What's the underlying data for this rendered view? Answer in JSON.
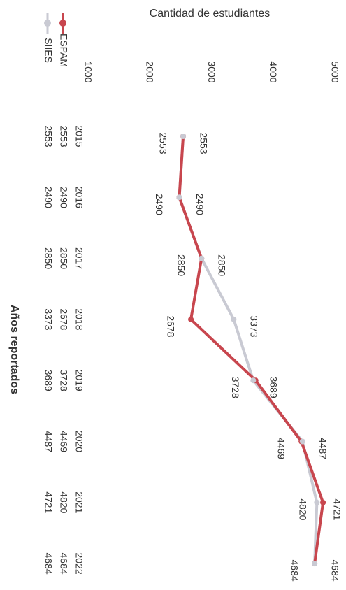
{
  "chart_data": {
    "type": "line",
    "title": "Cantidad de estudiantes",
    "x_label": "Años reportados",
    "categories": [
      "2015",
      "2016",
      "2017",
      "2018",
      "2019",
      "2020",
      "2021",
      "2022"
    ],
    "series": [
      {
        "name": "ESPAM",
        "color": "#c8464e",
        "values": [
          2553,
          2490,
          2850,
          2678,
          3728,
          4469,
          4820,
          4684
        ]
      },
      {
        "name": "SIIES",
        "color": "#c9cad3",
        "values": [
          2553,
          2490,
          2850,
          3373,
          3689,
          4487,
          4721,
          4684
        ]
      }
    ],
    "ylim": [
      1000,
      5000
    ],
    "yticks": [
      1000,
      2000,
      3000,
      4000,
      5000
    ]
  }
}
